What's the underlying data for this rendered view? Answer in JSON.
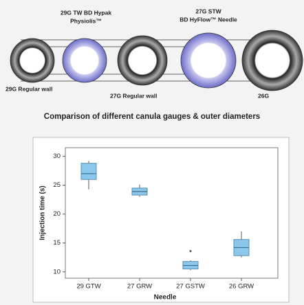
{
  "diagram": {
    "labels": [
      "29G TW BD Hypak",
      "Physiolis™",
      "27G STW",
      "BD HyFlow™ Needle",
      "29G Regular wall",
      "27G Regular wall",
      "26G"
    ],
    "caption": "Comparison of different canula gauges & outer diameters"
  },
  "chart_data": {
    "type": "box",
    "x_label": "Needle",
    "y_label": "Injection time (s)",
    "categories": [
      "29 GTW",
      "27 GRW",
      "27 GSTW",
      "26 GRW"
    ],
    "boxes": [
      {
        "min": 24.3,
        "q1": 26,
        "median": 27,
        "q3": 28.8,
        "max": 29.2,
        "outliers": []
      },
      {
        "min": 23,
        "q1": 23.3,
        "median": 23.9,
        "q3": 24.5,
        "max": 25.1,
        "outliers": []
      },
      {
        "min": 10.3,
        "q1": 10.5,
        "median": 11.1,
        "q3": 11.8,
        "max": 12,
        "outliers": [
          13.6
        ]
      },
      {
        "min": 12.5,
        "q1": 12.8,
        "median": 14.2,
        "q3": 15.6,
        "max": 17,
        "outliers": []
      }
    ],
    "color": "#8cc8ec",
    "ylim": [
      8.9,
      31.5
    ],
    "yticks": [
      10,
      15,
      20,
      25,
      30
    ]
  }
}
